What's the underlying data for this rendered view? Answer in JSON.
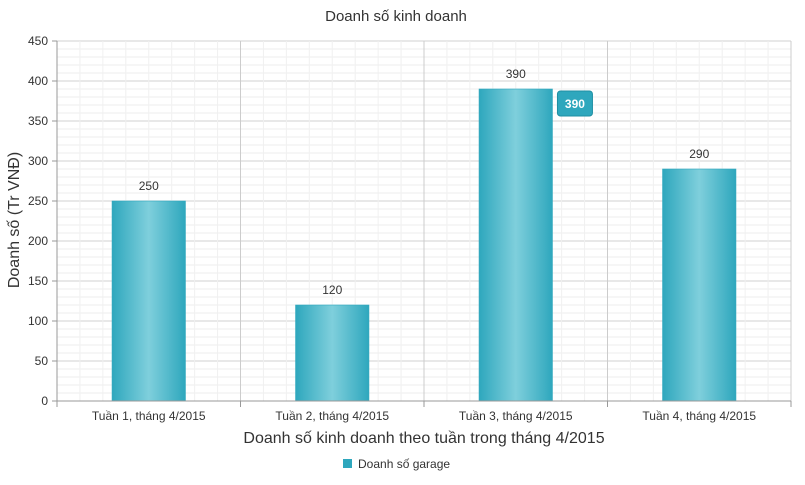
{
  "chart_data": {
    "type": "bar",
    "title": "Doanh số kinh doanh",
    "xlabel": "Doanh số kinh doanh theo tuần trong tháng 4/2015",
    "ylabel": "Doanh số (Tr VNĐ)",
    "categories": [
      "Tuần 1, tháng 4/2015",
      "Tuần 2, tháng 4/2015",
      "Tuần 3, tháng 4/2015",
      "Tuần 4, tháng 4/2015"
    ],
    "series": [
      {
        "name": "Doanh số garage",
        "values": [
          250,
          120,
          390,
          290
        ],
        "color": "#2ea7bd"
      }
    ],
    "ylim": [
      0,
      450
    ],
    "yticks": [
      0,
      50,
      100,
      150,
      200,
      250,
      300,
      350,
      400,
      450
    ],
    "grid": true,
    "legend": "bottom-center",
    "data_labels": true,
    "tooltip": {
      "category_index": 2,
      "value": 390
    }
  }
}
